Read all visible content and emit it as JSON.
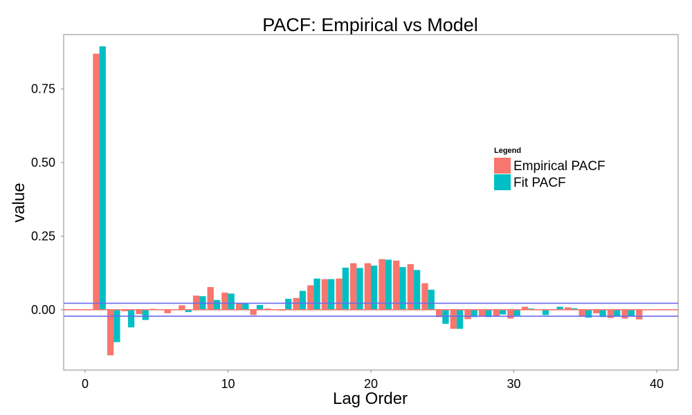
{
  "chart_data": {
    "type": "bar",
    "title": "PACF: Empirical vs Model",
    "xlabel": "Lag Order",
    "ylabel": "value",
    "xlim": [
      -1.5,
      41.5
    ],
    "ylim": [
      -0.205,
      0.935
    ],
    "x_ticks": [
      0,
      10,
      20,
      30,
      40
    ],
    "y_ticks": [
      0.0,
      0.25,
      0.5,
      0.75
    ],
    "y_tick_labels": [
      "0.00",
      "0.25",
      "0.50",
      "0.75"
    ],
    "grid": false,
    "legend_position": "right",
    "legend": {
      "title": "Legend",
      "entries": [
        "Empirical PACF",
        "Fit PACF"
      ]
    },
    "series": [
      {
        "name": "Empirical PACF",
        "color": "#F8766D",
        "x": [
          1,
          2,
          3,
          4,
          5,
          6,
          7,
          8,
          9,
          10,
          11,
          12,
          13,
          14,
          15,
          16,
          17,
          18,
          19,
          20,
          21,
          22,
          23,
          24,
          25,
          26,
          27,
          28,
          29,
          30,
          31,
          32,
          33,
          34,
          35,
          36,
          37,
          38,
          39
        ],
        "values": [
          0.87,
          -0.155,
          -0.005,
          -0.015,
          0.003,
          -0.012,
          0.015,
          0.048,
          0.077,
          0.058,
          0.022,
          -0.018,
          0.004,
          -0.003,
          0.04,
          0.083,
          0.104,
          0.106,
          0.158,
          0.158,
          0.172,
          0.167,
          0.155,
          0.09,
          -0.025,
          -0.065,
          -0.032,
          -0.022,
          -0.022,
          -0.03,
          0.01,
          0.0,
          0.0,
          0.008,
          -0.022,
          -0.012,
          -0.028,
          -0.03,
          -0.033
        ]
      },
      {
        "name": "Fit PACF",
        "color": "#00BFC4",
        "x": [
          1,
          2,
          3,
          4,
          5,
          6,
          7,
          8,
          9,
          10,
          11,
          12,
          13,
          14,
          15,
          16,
          17,
          18,
          19,
          20,
          21,
          22,
          23,
          24,
          25,
          26,
          27,
          28,
          29,
          30,
          31,
          32,
          33,
          34,
          35,
          36,
          37,
          38,
          39
        ],
        "values": [
          0.895,
          -0.11,
          -0.06,
          -0.035,
          0.0,
          0.0,
          -0.008,
          0.046,
          0.033,
          0.055,
          0.022,
          0.016,
          0.0,
          0.037,
          0.064,
          0.106,
          0.104,
          0.143,
          0.142,
          0.15,
          0.17,
          0.145,
          0.135,
          0.068,
          -0.048,
          -0.065,
          -0.025,
          -0.025,
          -0.016,
          -0.02,
          0.004,
          -0.018,
          0.01,
          0.005,
          -0.027,
          -0.025,
          -0.022,
          -0.022,
          0.0
        ]
      }
    ],
    "reference_lines": [
      {
        "y": 0.0,
        "color": "#F8766D"
      },
      {
        "y": 0.022,
        "color": "#6B6BF0"
      },
      {
        "y": -0.022,
        "color": "#6B6BF0"
      }
    ]
  }
}
